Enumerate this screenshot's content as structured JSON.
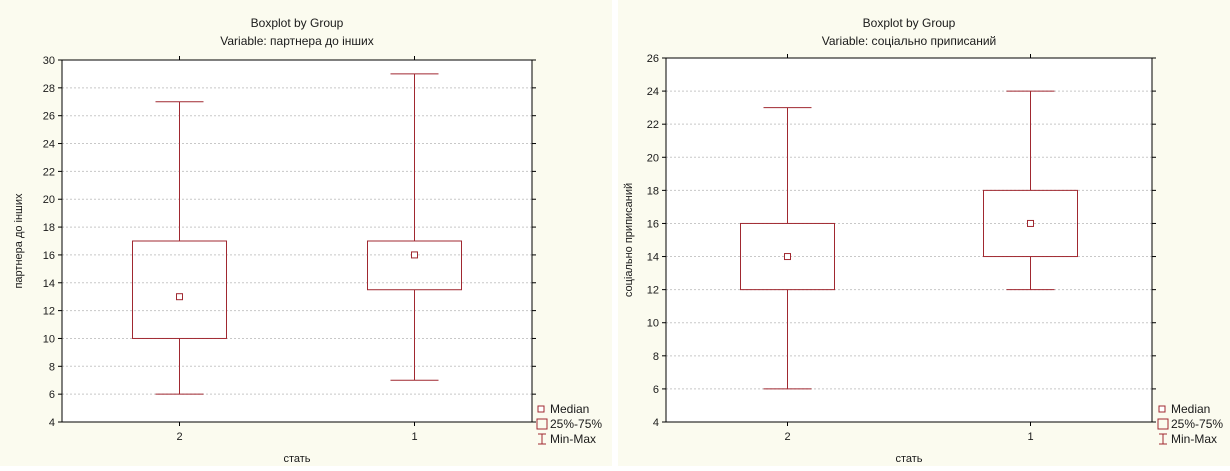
{
  "colors": {
    "background": "#fbfbef",
    "plot_bg": "#ffffff",
    "box": "#a02830",
    "grid": "#c8c8c8",
    "axis": "#000000"
  },
  "legend": {
    "median": "Median",
    "box": "25%-75%",
    "whisker": "Min-Max"
  },
  "chart_data": [
    {
      "type": "boxplot",
      "title": "Boxplot by Group",
      "subtitle": "Variable: партнера до інших",
      "xlabel": "стать",
      "ylabel": "партнера до інших",
      "ylim": [
        4,
        30
      ],
      "yticks": [
        4,
        6,
        8,
        10,
        12,
        14,
        16,
        18,
        20,
        22,
        24,
        26,
        28,
        30
      ],
      "grid": true,
      "legend_position": "bottom-right",
      "categories": [
        "2",
        "1"
      ],
      "series": [
        {
          "category": "2",
          "min": 6,
          "q1": 10,
          "median": 13,
          "q3": 17,
          "max": 27
        },
        {
          "category": "1",
          "min": 7,
          "q1": 13.5,
          "median": 16,
          "q3": 17,
          "max": 29
        }
      ]
    },
    {
      "type": "boxplot",
      "title": "Boxplot by Group",
      "subtitle": "Variable: соціально приписаний",
      "xlabel": "стать",
      "ylabel": "соціально приписаний",
      "ylim": [
        4,
        26
      ],
      "yticks": [
        4,
        6,
        8,
        10,
        12,
        14,
        16,
        18,
        20,
        22,
        24,
        26
      ],
      "grid": true,
      "legend_position": "bottom-right",
      "categories": [
        "2",
        "1"
      ],
      "series": [
        {
          "category": "2",
          "min": 6,
          "q1": 12,
          "median": 14,
          "q3": 16,
          "max": 23
        },
        {
          "category": "1",
          "min": 12,
          "q1": 14,
          "median": 16,
          "q3": 18,
          "max": 24
        }
      ]
    }
  ]
}
